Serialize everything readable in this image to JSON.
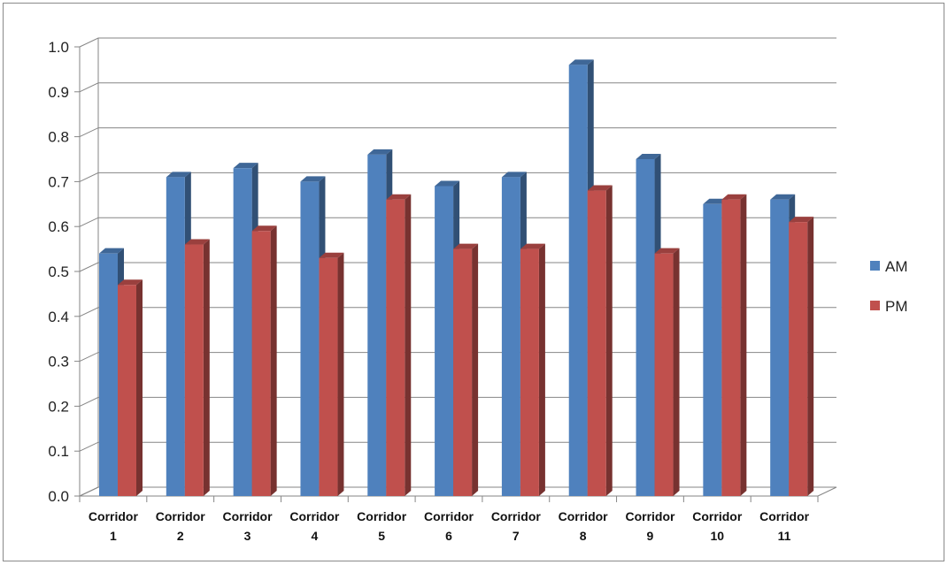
{
  "chart_data": {
    "type": "bar",
    "title": "",
    "xlabel": "",
    "ylabel": "",
    "ylim": [
      0,
      1.0
    ],
    "yticks": [
      "0.0",
      "0.1",
      "0.2",
      "0.3",
      "0.4",
      "0.5",
      "0.6",
      "0.7",
      "0.8",
      "0.9",
      "1.0"
    ],
    "grid": true,
    "legend_position": "right",
    "categories": [
      [
        "Corridor",
        "1"
      ],
      [
        "Corridor",
        "2"
      ],
      [
        "Corridor",
        "3"
      ],
      [
        "Corridor",
        "4"
      ],
      [
        "Corridor",
        "5"
      ],
      [
        "Corridor",
        "6"
      ],
      [
        "Corridor",
        "7"
      ],
      [
        "Corridor",
        "8"
      ],
      [
        "Corridor",
        "9"
      ],
      [
        "Corridor",
        "10"
      ],
      [
        "Corridor",
        "11"
      ]
    ],
    "series": [
      {
        "name": "AM",
        "color": "#4f81bd",
        "values": [
          0.54,
          0.71,
          0.73,
          0.7,
          0.76,
          0.69,
          0.71,
          0.96,
          0.75,
          0.65,
          0.66
        ]
      },
      {
        "name": "PM",
        "color": "#c0504d",
        "values": [
          0.47,
          0.56,
          0.59,
          0.53,
          0.66,
          0.55,
          0.55,
          0.68,
          0.54,
          0.66,
          0.61
        ]
      }
    ]
  }
}
